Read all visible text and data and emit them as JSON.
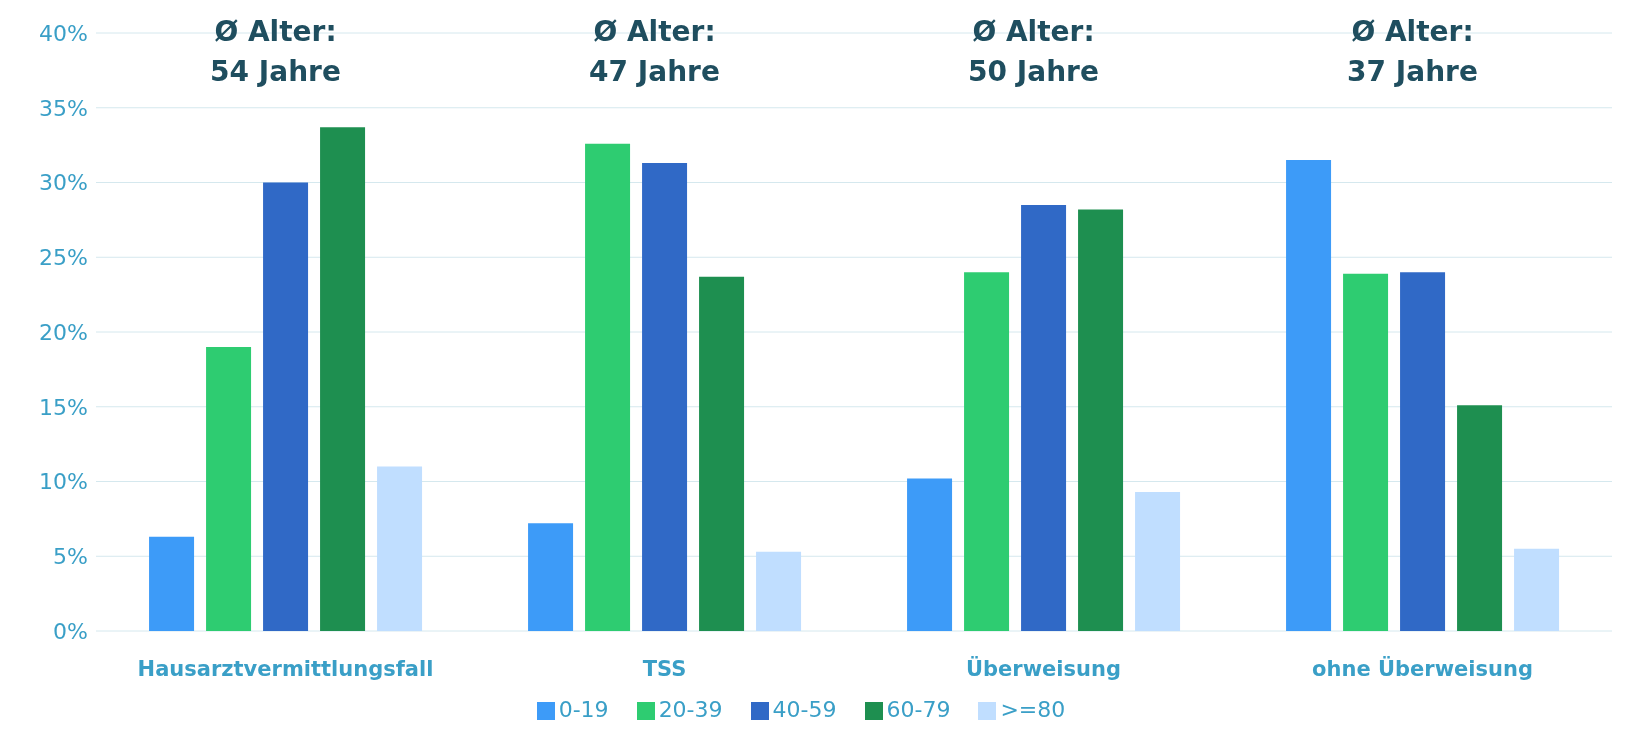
{
  "chart_data": {
    "type": "bar",
    "categories": [
      "Hausarztvermittlungsfall",
      "TSS",
      "Überweisung",
      "ohne Überweisung"
    ],
    "series": [
      {
        "name": "0-19",
        "color": "#3d9bf8",
        "values": [
          6.3,
          7.2,
          10.2,
          31.5
        ]
      },
      {
        "name": "20-39",
        "color": "#2ecc71",
        "values": [
          19.0,
          32.6,
          24.0,
          23.9
        ]
      },
      {
        "name": "40-59",
        "color": "#3069c6",
        "values": [
          30.0,
          31.3,
          28.5,
          24.0
        ]
      },
      {
        "name": "60-79",
        "color": "#1e8f50",
        "values": [
          33.7,
          23.7,
          28.2,
          15.1
        ]
      },
      {
        "name": ">=80",
        "color": "#c0deff",
        "values": [
          11.0,
          5.3,
          9.3,
          5.5
        ]
      }
    ],
    "ylim": [
      0,
      40
    ],
    "yticks": [
      {
        "value": 0,
        "label": "0%"
      },
      {
        "value": 5,
        "label": "5%"
      },
      {
        "value": 10,
        "label": "10%"
      },
      {
        "value": 15,
        "label": "15%"
      },
      {
        "value": 20,
        "label": "20%"
      },
      {
        "value": 25,
        "label": "25%"
      },
      {
        "value": 30,
        "label": "30%"
      },
      {
        "value": 35,
        "label": "35%"
      },
      {
        "value": 40,
        "label": "40%"
      }
    ],
    "grid": "y",
    "legend": "bottom",
    "annotations": [
      "Ø Alter:\n54 Jahre",
      "Ø Alter:\n47 Jahre",
      "Ø Alter:\n50 Jahre",
      "Ø Alter:\n37 Jahre"
    ]
  }
}
